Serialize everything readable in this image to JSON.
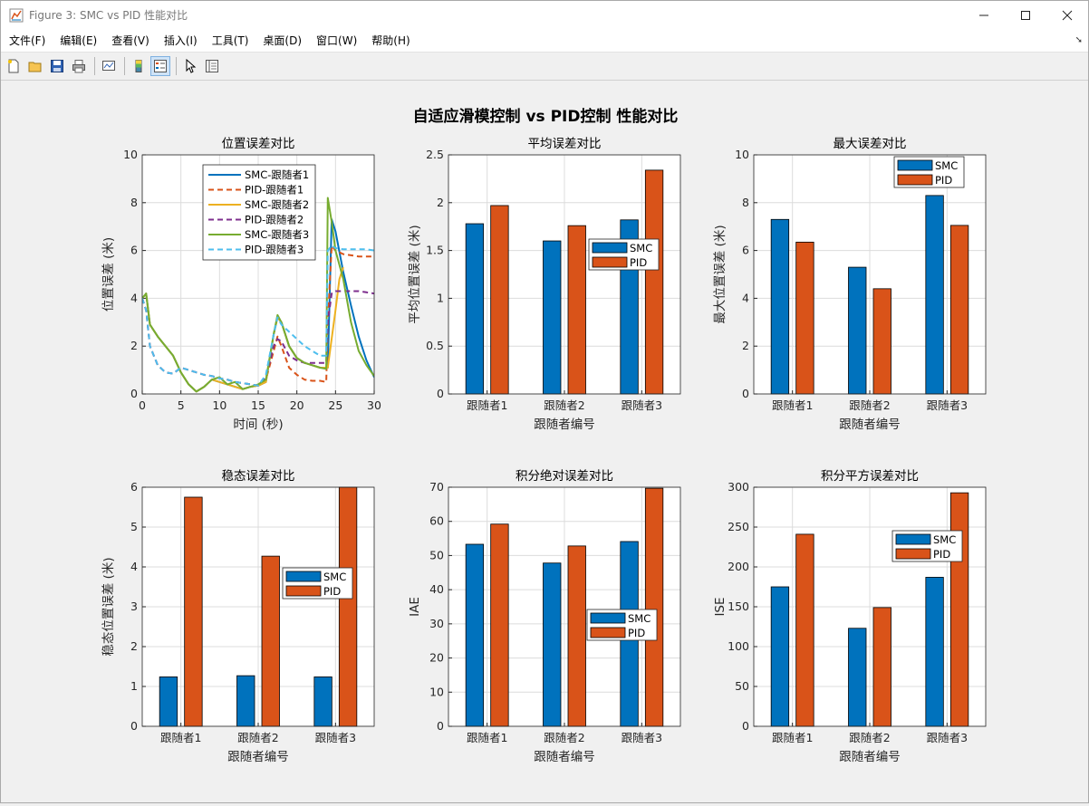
{
  "window": {
    "title": "Figure 3: SMC vs PID 性能对比"
  },
  "menu": [
    "文件(F)",
    "编辑(E)",
    "查看(V)",
    "插入(I)",
    "工具(T)",
    "桌面(D)",
    "窗口(W)",
    "帮助(H)"
  ],
  "toolbar": [
    "new-figure-icon",
    "open-icon",
    "save-icon",
    "print-icon",
    "link-plot-icon",
    "colorbar-icon",
    "legend-icon",
    "pointer-icon",
    "property-inspector-icon"
  ],
  "figure_title": "自适应滑模控制 vs PID控制 性能对比",
  "colors": {
    "smc": "#0072bd",
    "pid": "#d95319",
    "yellow": "#edb120",
    "purple": "#7e2f8e",
    "green": "#77ac30",
    "cyan": "#4dbeee"
  },
  "chart_data": [
    {
      "type": "line",
      "title": "位置误差对比",
      "xlabel": "时间 (秒)",
      "ylabel": "位置误差 (米)",
      "xlim": [
        0,
        30
      ],
      "ylim": [
        0,
        10
      ],
      "xticks": [
        0,
        5,
        10,
        15,
        20,
        25,
        30
      ],
      "yticks": [
        0,
        2,
        4,
        6,
        8,
        10
      ],
      "legend": "top-center",
      "series": [
        {
          "name": "SMC-跟随者1",
          "color": "#0072bd",
          "dash": false,
          "x": [
            0,
            0.5,
            1,
            2,
            4,
            5,
            6,
            7,
            8,
            9,
            10,
            11,
            12,
            13,
            14,
            15,
            16,
            17,
            17.5,
            18,
            19,
            20,
            21,
            22,
            23,
            24,
            24.5,
            25,
            26,
            27,
            28,
            29,
            30
          ],
          "y": [
            4.0,
            4.2,
            2.9,
            2.4,
            1.6,
            0.9,
            0.4,
            0.1,
            0.3,
            0.6,
            0.5,
            0.4,
            0.3,
            0.2,
            0.3,
            0.35,
            0.5,
            2.5,
            3.2,
            3.0,
            2.0,
            1.5,
            1.3,
            1.2,
            1.1,
            1.1,
            7.3,
            6.8,
            5.1,
            3.7,
            2.4,
            1.4,
            0.7
          ]
        },
        {
          "name": "PID-跟随者1",
          "color": "#d95319",
          "dash": true,
          "x": [
            0,
            0.5,
            1,
            2,
            3,
            4,
            5,
            6,
            7,
            8,
            9,
            10,
            11,
            12,
            13,
            14,
            15,
            16,
            17,
            17.5,
            18,
            19,
            20,
            21,
            22,
            23,
            23.8,
            24,
            24.5,
            25,
            26,
            27,
            28,
            29,
            30
          ],
          "y": [
            4.0,
            3.5,
            2.0,
            1.2,
            0.9,
            0.85,
            1.1,
            1.0,
            0.9,
            0.8,
            0.75,
            0.65,
            0.6,
            0.5,
            0.45,
            0.4,
            0.35,
            0.6,
            1.8,
            2.4,
            2.0,
            1.1,
            0.8,
            0.6,
            0.55,
            0.55,
            0.5,
            3.0,
            6.2,
            6.0,
            5.85,
            5.8,
            5.75,
            5.75,
            5.75
          ]
        },
        {
          "name": "SMC-跟随者2",
          "color": "#edb120",
          "dash": false,
          "x": [
            0,
            0.5,
            1,
            2,
            4,
            5,
            6,
            7,
            8,
            9,
            10,
            11,
            12,
            13,
            14,
            15,
            16,
            17,
            17.5,
            18,
            19,
            20,
            21,
            22,
            23,
            24,
            25,
            25.5,
            26
          ],
          "y": [
            4.0,
            4.2,
            2.9,
            2.4,
            1.6,
            0.9,
            0.4,
            0.1,
            0.3,
            0.6,
            0.5,
            0.4,
            0.3,
            0.2,
            0.3,
            0.35,
            0.5,
            2.5,
            3.2,
            3.0,
            2.0,
            1.5,
            1.3,
            1.2,
            1.1,
            1.1,
            3.5,
            4.8,
            5.3
          ]
        },
        {
          "name": "PID-跟随者2",
          "color": "#7e2f8e",
          "dash": true,
          "x": [
            0,
            0.5,
            1,
            2,
            3,
            4,
            5,
            6,
            7,
            8,
            9,
            10,
            11,
            12,
            13,
            14,
            15,
            16,
            17,
            17.5,
            18,
            19,
            20,
            21,
            22,
            23,
            23.8,
            24,
            24.5,
            25,
            26,
            27,
            28,
            29,
            30
          ],
          "y": [
            4.0,
            3.5,
            2.0,
            1.2,
            0.9,
            0.85,
            1.1,
            1.0,
            0.9,
            0.8,
            0.75,
            0.65,
            0.6,
            0.5,
            0.45,
            0.4,
            0.35,
            0.7,
            2.0,
            2.3,
            2.2,
            1.6,
            1.4,
            1.3,
            1.3,
            1.3,
            1.3,
            3.0,
            4.2,
            4.3,
            4.3,
            4.3,
            4.3,
            4.25,
            4.2
          ]
        },
        {
          "name": "SMC-跟随者3",
          "color": "#77ac30",
          "dash": false,
          "x": [
            0,
            0.5,
            1,
            2,
            4,
            5,
            6,
            7,
            8,
            9,
            10,
            11,
            12,
            13,
            14,
            15,
            16,
            17,
            17.5,
            18,
            19,
            20,
            21,
            22,
            23,
            23.8,
            24,
            24.5,
            25,
            26,
            27,
            28,
            29,
            30
          ],
          "y": [
            4.0,
            4.2,
            2.9,
            2.4,
            1.6,
            0.9,
            0.4,
            0.1,
            0.3,
            0.6,
            0.7,
            0.4,
            0.5,
            0.2,
            0.3,
            0.4,
            0.6,
            2.5,
            3.3,
            3.0,
            2.0,
            1.5,
            1.3,
            1.2,
            1.1,
            1.05,
            8.2,
            7.2,
            6.0,
            4.8,
            3.0,
            1.8,
            1.2,
            0.75
          ]
        },
        {
          "name": "PID-跟随者3",
          "color": "#4dbeee",
          "dash": true,
          "x": [
            0,
            0.5,
            1,
            2,
            3,
            4,
            5,
            6,
            7,
            8,
            9,
            10,
            11,
            12,
            13,
            14,
            15,
            16,
            17,
            17.5,
            18,
            19,
            20,
            21,
            22,
            23,
            23.8,
            24,
            24.5,
            25,
            26,
            27,
            28,
            29,
            30
          ],
          "y": [
            4.0,
            3.5,
            2.0,
            1.2,
            0.9,
            0.85,
            1.1,
            1.0,
            0.9,
            0.8,
            0.75,
            0.65,
            0.6,
            0.5,
            0.45,
            0.4,
            0.35,
            0.8,
            2.5,
            3.2,
            2.9,
            2.6,
            2.3,
            2.0,
            1.8,
            1.6,
            1.6,
            6.0,
            6.2,
            6.1,
            6.05,
            6.05,
            6.05,
            6.05,
            6.0
          ]
        }
      ]
    },
    {
      "type": "bar",
      "title": "平均误差对比",
      "xlabel": "跟随者编号",
      "ylabel": "平均位置误差 (米)",
      "categories": [
        "跟随者1",
        "跟随者2",
        "跟随者3"
      ],
      "ylim": [
        0,
        2.5
      ],
      "yticks": [
        "0",
        "0.5",
        "1",
        "1.5",
        "2",
        "2.5"
      ],
      "series": [
        {
          "name": "SMC",
          "values": [
            1.78,
            1.6,
            1.82
          ]
        },
        {
          "name": "PID",
          "values": [
            1.97,
            1.76,
            2.34
          ]
        }
      ],
      "legend": "center-right"
    },
    {
      "type": "bar",
      "title": "最大误差对比",
      "xlabel": "跟随者编号",
      "ylabel": "最大位置误差 (米)",
      "categories": [
        "跟随者1",
        "跟随者2",
        "跟随者3"
      ],
      "ylim": [
        0,
        10
      ],
      "yticks": [
        "0",
        "2",
        "4",
        "6",
        "8",
        "10"
      ],
      "series": [
        {
          "name": "SMC",
          "values": [
            7.3,
            5.3,
            8.3
          ]
        },
        {
          "name": "PID",
          "values": [
            6.35,
            4.4,
            7.05
          ]
        }
      ],
      "legend": "top-right"
    },
    {
      "type": "bar",
      "title": "稳态误差对比",
      "xlabel": "跟随者编号",
      "ylabel": "稳态位置误差 (米)",
      "categories": [
        "跟随者1",
        "跟随者2",
        "跟随者3"
      ],
      "ylim": [
        0,
        6
      ],
      "yticks": [
        "0",
        "1",
        "2",
        "3",
        "4",
        "5",
        "6"
      ],
      "series": [
        {
          "name": "SMC",
          "values": [
            1.24,
            1.27,
            1.24
          ]
        },
        {
          "name": "PID",
          "values": [
            5.75,
            4.27,
            6.05
          ]
        }
      ],
      "legend": "center-right"
    },
    {
      "type": "bar",
      "title": "积分绝对误差对比",
      "xlabel": "跟随者编号",
      "ylabel": "IAE",
      "categories": [
        "跟随者1",
        "跟随者2",
        "跟随者3"
      ],
      "ylim": [
        0,
        70
      ],
      "yticks": [
        "0",
        "10",
        "20",
        "30",
        "40",
        "50",
        "60",
        "70"
      ],
      "series": [
        {
          "name": "SMC",
          "values": [
            53.3,
            47.8,
            54.1
          ]
        },
        {
          "name": "PID",
          "values": [
            59.2,
            52.8,
            69.7
          ]
        }
      ],
      "legend": "lower-right"
    },
    {
      "type": "bar",
      "title": "积分平方误差对比",
      "xlabel": "跟随者编号",
      "ylabel": "ISE",
      "categories": [
        "跟随者1",
        "跟随者2",
        "跟随者3"
      ],
      "ylim": [
        0,
        300
      ],
      "yticks": [
        "0",
        "50",
        "100",
        "150",
        "200",
        "250",
        "300"
      ],
      "series": [
        {
          "name": "SMC",
          "values": [
            175,
            123,
            187
          ]
        },
        {
          "name": "PID",
          "values": [
            241,
            149,
            293
          ]
        }
      ],
      "legend": "top-right"
    }
  ]
}
